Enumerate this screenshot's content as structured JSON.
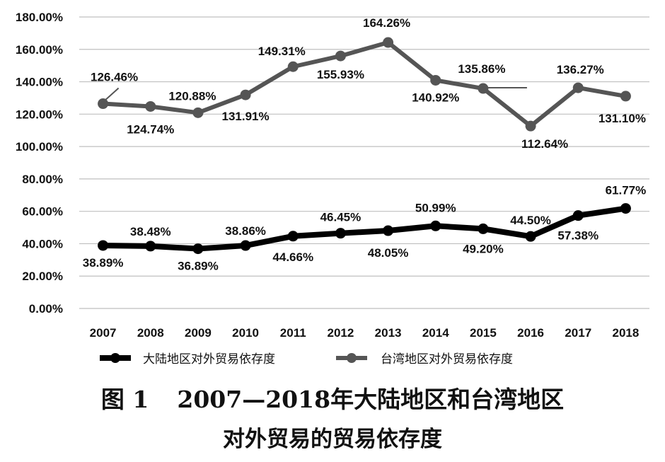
{
  "figure": {
    "label": "图 1",
    "caption_line1": "2007—2018年大陆地区和台湾地区",
    "caption_line2": "对外贸易的贸易依存度"
  },
  "chart_data": {
    "type": "line",
    "title": "",
    "xlabel": "",
    "ylabel": "",
    "categories": [
      "2007",
      "2008",
      "2009",
      "2010",
      "2011",
      "2012",
      "2013",
      "2014",
      "2015",
      "2016",
      "2017",
      "2018"
    ],
    "ylim": [
      0,
      180
    ],
    "yticks": [
      "0.00%",
      "20.00%",
      "40.00%",
      "60.00%",
      "80.00%",
      "100.00%",
      "120.00%",
      "140.00%",
      "160.00%",
      "180.00%"
    ],
    "grid": true,
    "legend_position": "bottom",
    "series": [
      {
        "name": "大陆地区对外贸易依存度",
        "color": "#000000",
        "values": [
          38.89,
          38.48,
          36.89,
          38.86,
          44.66,
          46.45,
          48.05,
          50.99,
          49.2,
          44.5,
          57.38,
          61.77
        ],
        "labels": [
          "38.89%",
          "38.48%",
          "36.89%",
          "38.86%",
          "44.66%",
          "46.45%",
          "48.05%",
          "50.99%",
          "49.20%",
          "44.50%",
          "57.38%",
          "61.77%"
        ]
      },
      {
        "name": "台湾地区对外贸易依存度",
        "color": "#555555",
        "values": [
          126.46,
          124.74,
          120.88,
          131.91,
          149.31,
          155.93,
          164.26,
          140.92,
          135.86,
          112.64,
          136.27,
          131.1
        ],
        "labels": [
          "126.46%",
          "124.74%",
          "120.88%",
          "131.91%",
          "149.31%",
          "155.93%",
          "164.26%",
          "140.92%",
          "135.86%",
          "112.64%",
          "136.27%",
          "131.10%"
        ]
      }
    ]
  }
}
